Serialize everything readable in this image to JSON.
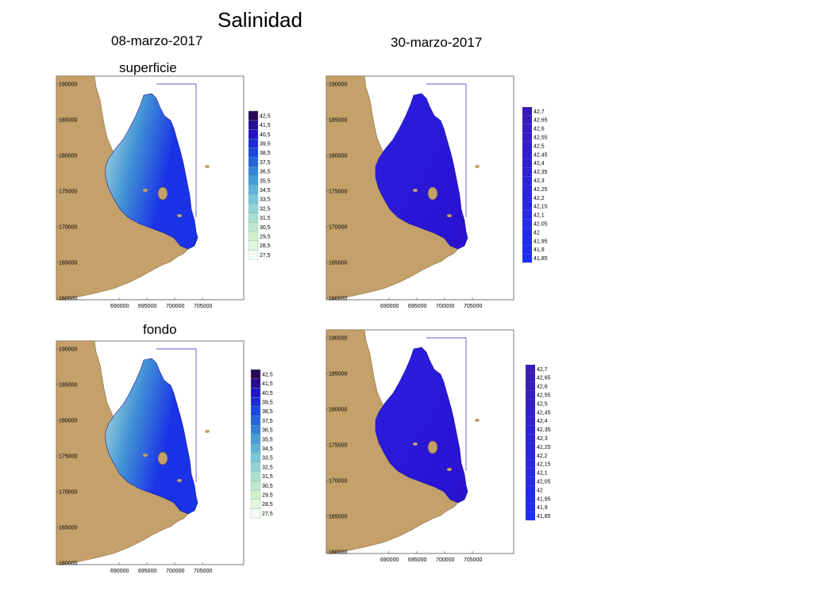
{
  "page": {
    "title": "Salinidad"
  },
  "dates": [
    "08-marzo-2017",
    "30-marzo-2017"
  ],
  "layers": [
    "superficie",
    "fondo"
  ],
  "axes": {
    "y_ticks": [
      "160000",
      "165000",
      "170000",
      "175000",
      "180000",
      "185000",
      "190000"
    ],
    "x_ticks": [
      "690000",
      "695000",
      "700000",
      "705000"
    ]
  },
  "colorbars": {
    "march8": [
      "42,5",
      "41,5",
      "40,5",
      "39,5",
      "38,5",
      "37,5",
      "36,5",
      "35,5",
      "34,5",
      "33,5",
      "32,5",
      "31,5",
      "30,5",
      "29,5",
      "28,5",
      "27,5"
    ],
    "march30": [
      "42,7",
      "42,65",
      "42,6",
      "42,55",
      "42,5",
      "42,45",
      "42,4",
      "42,35",
      "42,3",
      "42,25",
      "42,2",
      "42,15",
      "42,1",
      "42,05",
      "42",
      "41,95",
      "41,9",
      "41,85"
    ]
  },
  "colors": {
    "land": "#c4a06a",
    "lagoon_deep": "#1a33e6",
    "lagoon_mid": "#3f8fd6",
    "lagoon_light": "#aee0de",
    "march30_fill": "#2a1fe0",
    "boundary": "#5a5ad8"
  },
  "chart_data": [
    {
      "type": "heatmap",
      "title": "superficie",
      "date": "08-marzo-2017",
      "variable": "Salinidad",
      "x_ticks": [
        690000,
        695000,
        700000,
        705000
      ],
      "y_ticks": [
        160000,
        165000,
        170000,
        175000,
        180000,
        185000,
        190000
      ],
      "color_scale": [
        27.5,
        42.5
      ]
    },
    {
      "type": "heatmap",
      "title": "",
      "date": "30-marzo-2017",
      "variable": "Salinidad",
      "x_ticks": [
        690000,
        695000,
        700000,
        705000
      ],
      "y_ticks": [
        160000,
        165000,
        170000,
        175000,
        180000,
        185000,
        190000
      ],
      "color_scale": [
        41.85,
        42.7
      ]
    },
    {
      "type": "heatmap",
      "title": "fondo",
      "date": "08-marzo-2017",
      "variable": "Salinidad",
      "x_ticks": [
        690000,
        695000,
        700000,
        705000
      ],
      "y_ticks": [
        160000,
        165000,
        170000,
        175000,
        180000,
        185000,
        190000
      ],
      "color_scale": [
        27.5,
        42.5
      ]
    },
    {
      "type": "heatmap",
      "title": "",
      "date": "30-marzo-2017",
      "variable": "Salinidad",
      "x_ticks": [
        690000,
        695000,
        700000,
        705000
      ],
      "y_ticks": [
        160000,
        165000,
        170000,
        175000,
        180000,
        185000,
        190000
      ],
      "color_scale": [
        41.85,
        42.7
      ]
    }
  ]
}
